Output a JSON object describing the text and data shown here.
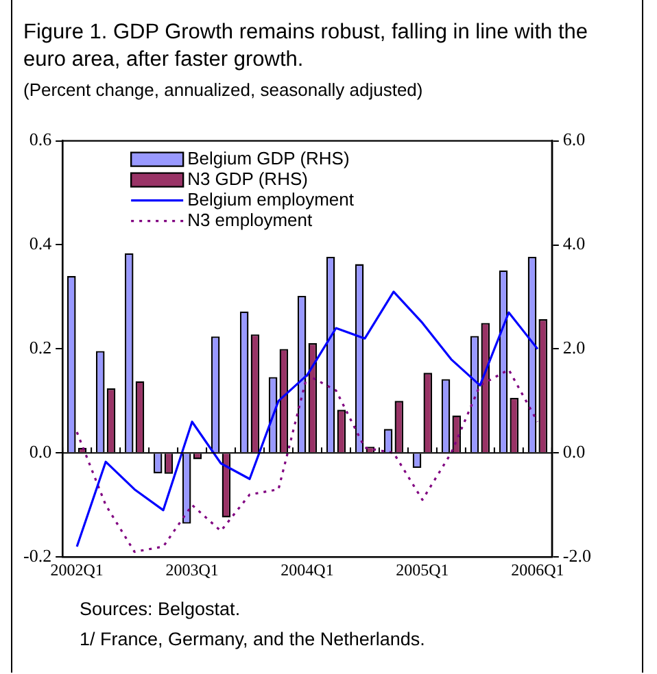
{
  "chart_data": {
    "type": "bar",
    "title": "Figure 1. GDP Growth remains robust, falling in line with the euro area, after faster growth.",
    "subtitle": "(Percent change, annualized, seasonally adjusted)",
    "categories": [
      "2002Q1",
      null,
      null,
      null,
      "2003Q1",
      null,
      null,
      null,
      "2004Q1",
      null,
      null,
      null,
      "2005Q1",
      null,
      null,
      null,
      "2006Q1"
    ],
    "series": [
      {
        "name": "Belgium GDP (RHS)",
        "axis": "y2",
        "color": "#9999ff",
        "values": [
          3.4,
          1.96,
          3.84,
          -0.39,
          -1.36,
          2.24,
          2.72,
          1.46,
          3.02,
          3.77,
          3.63,
          0.46,
          -0.29,
          1.42,
          2.25,
          3.51,
          3.77
        ]
      },
      {
        "name": "N3 GDP (RHS)",
        "axis": "y2",
        "color": "#993366",
        "values": [
          0.1,
          1.24,
          1.38,
          -0.4,
          -0.12,
          -1.24,
          2.28,
          2.0,
          2.11,
          0.83,
          0.12,
          1.0,
          1.54,
          0.72,
          2.5,
          1.06,
          2.57
        ]
      },
      {
        "name": "Belgium employment",
        "type": "line",
        "axis": "y",
        "color": "#0000ff",
        "line_style": "solid",
        "values": [
          -0.18,
          -0.017,
          -0.07,
          -0.11,
          0.06,
          -0.02,
          -0.05,
          0.1,
          0.15,
          0.24,
          0.22,
          0.31,
          0.25,
          0.18,
          0.13,
          0.27,
          0.2
        ]
      },
      {
        "name": "N3 employment",
        "type": "line",
        "axis": "y",
        "color": "#800080",
        "line_style": "dotted",
        "values": [
          0.04,
          -0.1,
          -0.19,
          -0.18,
          -0.1,
          -0.15,
          -0.08,
          -0.07,
          0.15,
          0.12,
          0.01,
          0.0,
          -0.09,
          0.0,
          0.13,
          0.16,
          0.06
        ]
      }
    ],
    "ylim": [
      -0.2,
      0.6
    ],
    "yticks": [
      {
        "value": -0.2,
        "label": "-0.2"
      },
      {
        "value": 0,
        "label": "0.0"
      },
      {
        "value": 0.2,
        "label": "0.2"
      },
      {
        "value": 0.4,
        "label": "0.4"
      },
      {
        "value": 0.6,
        "label": "0.6"
      }
    ],
    "y2lim": [
      -2,
      6
    ],
    "y2ticks": [
      {
        "value": -2,
        "label": "-2.0"
      },
      {
        "value": 0,
        "label": "0.0"
      },
      {
        "value": 2,
        "label": "2.0"
      },
      {
        "value": 4,
        "label": "4.0"
      },
      {
        "value": 6,
        "label": "6.0"
      }
    ],
    "ref_lines": [
      {
        "axis": "y",
        "value": 0,
        "color": "#000000"
      }
    ],
    "legend": "top left",
    "marker": "none",
    "annotations": [
      "Sources: Belgostat.",
      "1/ France, Germany, and the Netherlands."
    ]
  }
}
